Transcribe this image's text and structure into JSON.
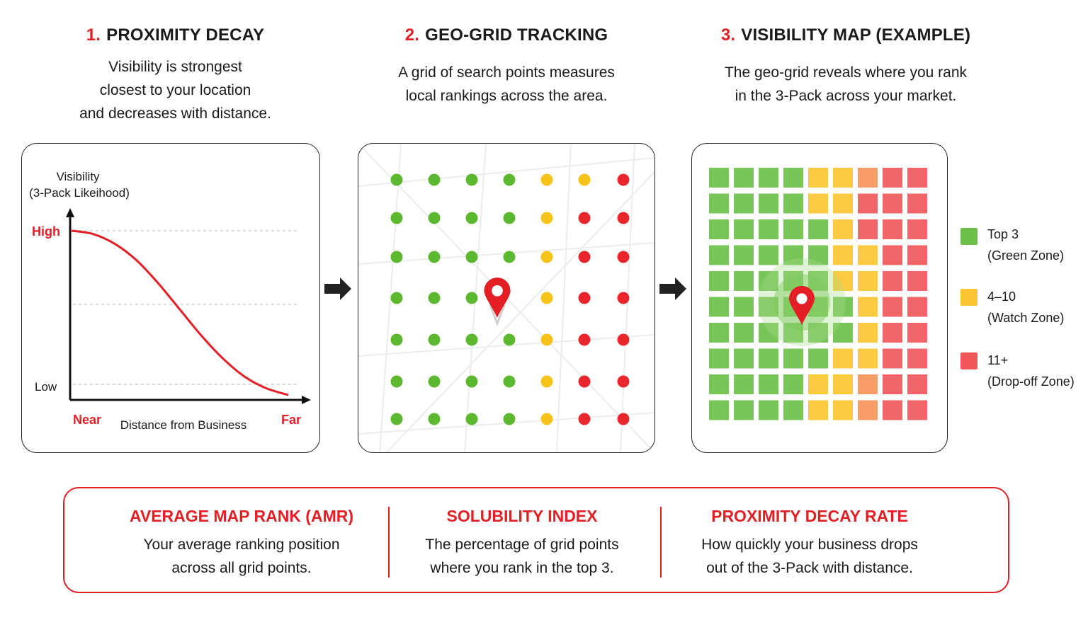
{
  "columns": [
    {
      "number": "1.",
      "title": "PROXIMITY DECAY",
      "lines": [
        "Visibility is strongest",
        "closest to your location",
        "and decreases with distance."
      ]
    },
    {
      "number": "2.",
      "title": "GEO-GRID TRACKING",
      "lines": [
        "A grid of search points measures",
        "local rankings across the area."
      ]
    },
    {
      "number": "3.",
      "title": "VISIBILITY MAP (EXAMPLE)",
      "lines": [
        "The geo-grid reveals where you rank",
        "in the 3-Pack across your market."
      ]
    }
  ],
  "decay_chart": {
    "ylabel_line1": "Visibility",
    "ylabel_line2": "(3-Pack Likeihood)",
    "high": "High",
    "low": "Low",
    "near": "Near",
    "far": "Far",
    "xlabel": "Distance from Business"
  },
  "chart_data": {
    "type": "line",
    "x": [
      0,
      0.1,
      0.2,
      0.3,
      0.4,
      0.5,
      0.6,
      0.7,
      0.8,
      0.9,
      1.0
    ],
    "y": [
      1.0,
      0.98,
      0.92,
      0.82,
      0.68,
      0.52,
      0.36,
      0.22,
      0.11,
      0.04,
      0.0
    ],
    "series_color": "#e31e24",
    "ytick_labels": [
      "Low",
      "High"
    ],
    "xtick_labels": [
      "Near",
      "Far"
    ],
    "grid": "dashed horizontal"
  },
  "geo_grid": {
    "rows": [
      [
        "green",
        "green",
        "green",
        "green",
        "yellow",
        "yellow",
        "red"
      ],
      [
        "green",
        "green",
        "green",
        "green",
        "yellow",
        "red",
        "red"
      ],
      [
        "green",
        "green",
        "green",
        "green",
        "yellow",
        "red",
        "red"
      ],
      [
        "green",
        "green",
        "green",
        "pin",
        "yellow",
        "red",
        "red"
      ],
      [
        "green",
        "green",
        "green",
        "green",
        "yellow",
        "red",
        "red"
      ],
      [
        "green",
        "green",
        "green",
        "green",
        "yellow",
        "red",
        "red"
      ],
      [
        "green",
        "green",
        "green",
        "green",
        "yellow",
        "red",
        "red"
      ]
    ],
    "pin_icon": "map-pin-icon"
  },
  "visibility_map": {
    "rows": [
      [
        "g",
        "g",
        "g",
        "g",
        "y",
        "y",
        "o",
        "r",
        "r"
      ],
      [
        "g",
        "g",
        "g",
        "g",
        "y",
        "y",
        "r",
        "r",
        "r"
      ],
      [
        "g",
        "g",
        "g",
        "g",
        "g",
        "y",
        "r",
        "r",
        "r"
      ],
      [
        "g",
        "g",
        "g",
        "g",
        "g",
        "y",
        "y",
        "r",
        "r"
      ],
      [
        "g",
        "g",
        "g",
        "g",
        "g",
        "y",
        "y",
        "r",
        "r"
      ],
      [
        "g",
        "g",
        "g",
        "g",
        "g",
        "g",
        "y",
        "r",
        "r"
      ],
      [
        "g",
        "g",
        "g",
        "g",
        "g",
        "g",
        "y",
        "r",
        "r"
      ],
      [
        "g",
        "g",
        "g",
        "g",
        "g",
        "y",
        "y",
        "r",
        "r"
      ],
      [
        "g",
        "g",
        "g",
        "g",
        "y",
        "y",
        "o",
        "r",
        "r"
      ],
      [
        "g",
        "g",
        "g",
        "g",
        "y",
        "y",
        "o",
        "r",
        "r"
      ]
    ],
    "pin_icon": "map-pin-icon"
  },
  "legend": [
    {
      "line1": "Top 3",
      "line2": "(Green Zone)",
      "color": "#6cc04a"
    },
    {
      "line1": "4–10",
      "line2": "(Watch Zone)",
      "color": "#fbc531"
    },
    {
      "line1": "11+",
      "line2": "(Drop-off Zone)",
      "color": "#f0575a"
    }
  ],
  "metrics": [
    {
      "title": "AVERAGE MAP RANK (AMR)",
      "line1": "Your average ranking position",
      "line2": "across all grid points."
    },
    {
      "title": "SOLUBILITY INDEX",
      "line1": "The percentage of grid points",
      "line2": "where you rank in the top 3."
    },
    {
      "title": "PROXIMITY DECAY RATE",
      "line1": "How quickly your business drops",
      "line2": "out of the 3-Pack with distance."
    }
  ],
  "colors": {
    "accent": "#e31e24",
    "green": "#6cc04a",
    "yellow": "#fbc531",
    "orange": "#f6925a",
    "red": "#f0575a",
    "dot_green": "#5cb82f",
    "dot_yellow": "#f7c21a",
    "dot_red": "#e8262b"
  }
}
